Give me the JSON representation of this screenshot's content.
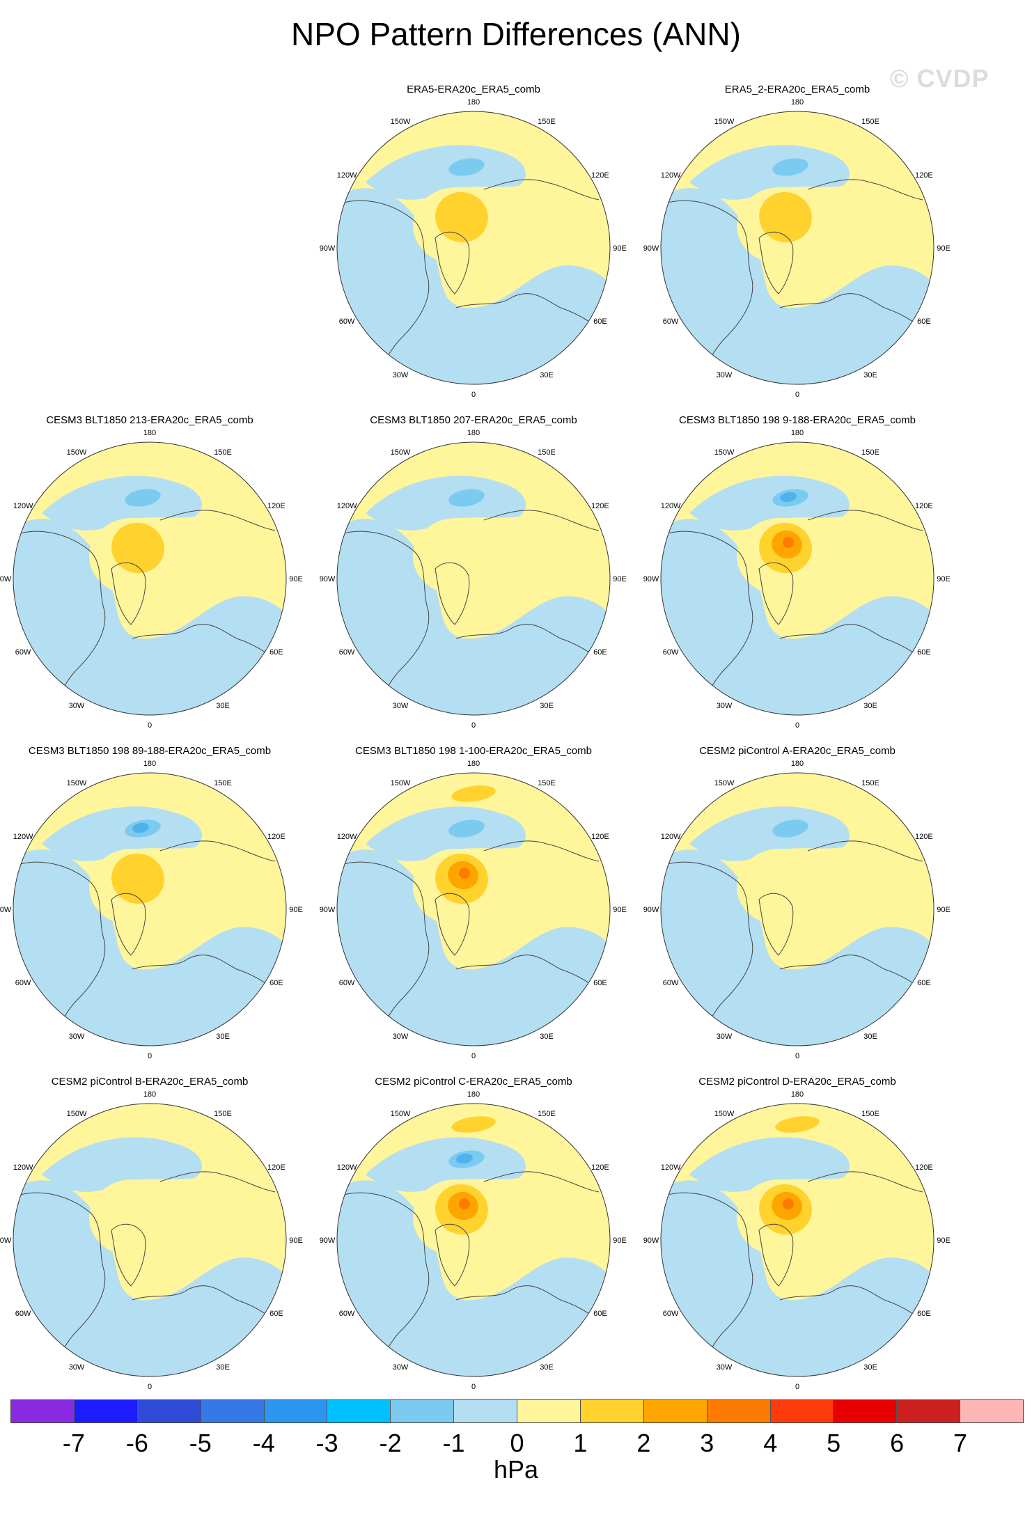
{
  "title": "NPO Pattern Differences (ANN)",
  "watermark": "© CVDP",
  "units": "hPa",
  "lon_labels": [
    "180",
    "150E",
    "120E",
    "90E",
    "60E",
    "30E",
    "0",
    "30W",
    "60W",
    "90W",
    "120W",
    "150W"
  ],
  "colorbar": {
    "ticks": [
      "-7",
      "-6",
      "-5",
      "-4",
      "-3",
      "-2",
      "-1",
      "0",
      "1",
      "2",
      "3",
      "4",
      "5",
      "6",
      "7"
    ],
    "colors": [
      "#8a2be2",
      "#1c1cff",
      "#2f4ad9",
      "#3479e6",
      "#2b95ef",
      "#00c0ff",
      "#7bcbf1",
      "#b4def2",
      "#fff59b",
      "#ffd22e",
      "#ffa500",
      "#ff7a00",
      "#ff3a0d",
      "#e80000",
      "#cc1f1f",
      "#ffb6b6"
    ]
  },
  "fill_colors": {
    "background": "#fff59b",
    "neg1": "#b4def2",
    "neg2": "#7bcbf1",
    "neg3": "#4fb2ec",
    "pos1": "#ffd22e",
    "pos2": "#ffa500",
    "pos3": "#ff7a00",
    "coast": "#444444"
  },
  "panels": [
    {
      "title": "ERA5-ERA20c_ERA5_comb",
      "pos_level": 2,
      "neg_level": 2,
      "pacific_blob": false
    },
    {
      "title": "ERA5_2-ERA20c_ERA5_comb",
      "pos_level": 2,
      "neg_level": 2,
      "pacific_blob": false
    },
    {
      "title": "CESM3 BLT1850 213-ERA20c_ERA5_comb",
      "pos_level": 2,
      "neg_level": 2,
      "pacific_blob": false
    },
    {
      "title": "CESM3 BLT1850 207-ERA20c_ERA5_comb",
      "pos_level": 1,
      "neg_level": 2,
      "pacific_blob": false
    },
    {
      "title": "CESM3 BLT1850 198 9-188-ERA20c_ERA5_comb",
      "pos_level": 3,
      "neg_level": 3,
      "pacific_blob": false
    },
    {
      "title": "CESM3 BLT1850 198 89-188-ERA20c_ERA5_comb",
      "pos_level": 2,
      "neg_level": 3,
      "pacific_blob": false
    },
    {
      "title": "CESM3 BLT1850 198 1-100-ERA20c_ERA5_comb",
      "pos_level": 3,
      "neg_level": 2,
      "pacific_blob": true
    },
    {
      "title": "CESM2 piControl A-ERA20c_ERA5_comb",
      "pos_level": 1,
      "neg_level": 2,
      "pacific_blob": false
    },
    {
      "title": "CESM2 piControl B-ERA20c_ERA5_comb",
      "pos_level": 1,
      "neg_level": 1,
      "pacific_blob": false
    },
    {
      "title": "CESM2 piControl C-ERA20c_ERA5_comb",
      "pos_level": 3,
      "neg_level": 3,
      "pacific_blob": true
    },
    {
      "title": "CESM2 piControl D-ERA20c_ERA5_comb",
      "pos_level": 3,
      "neg_level": 1,
      "pacific_blob": true
    }
  ]
}
